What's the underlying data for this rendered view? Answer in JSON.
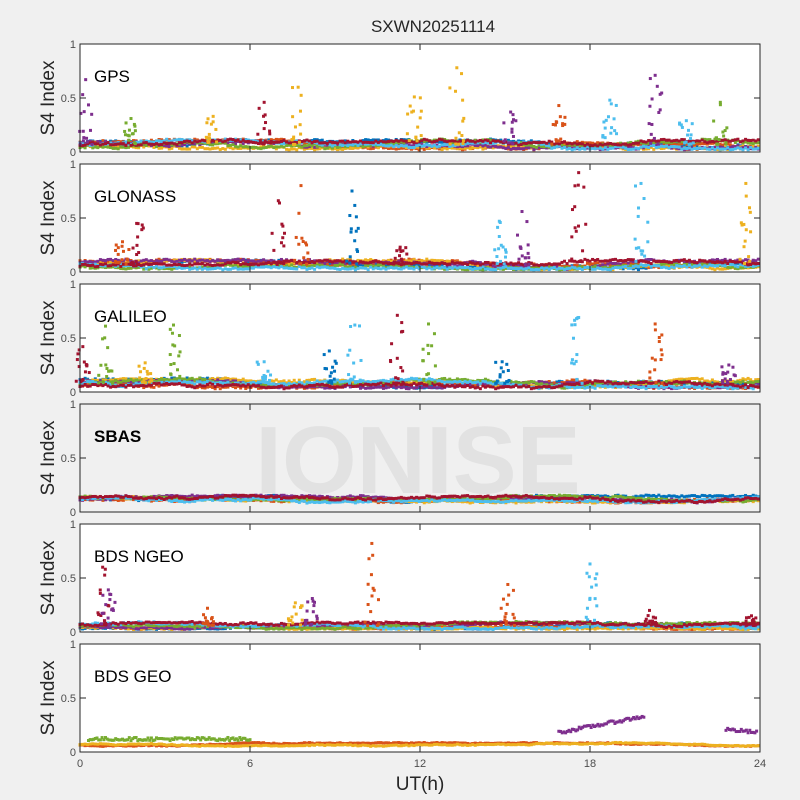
{
  "chart_data": {
    "type": "scatter",
    "title": "SXWN20251114",
    "xlabel": "UT(h)",
    "ylabel": "S4 Index",
    "xlim": [
      0,
      24
    ],
    "ylim": [
      0,
      1
    ],
    "xticks": [
      "0",
      "6",
      "12",
      "18",
      "24"
    ],
    "yticks": [
      "0",
      "0.5",
      "1"
    ],
    "watermark": "IONISE",
    "colors": [
      "#0072bd",
      "#d95319",
      "#edb120",
      "#7e2f8e",
      "#77ac30",
      "#4dbeee",
      "#a2142f"
    ],
    "panels": [
      {
        "label": "GPS",
        "baseline": 0.07,
        "noise": 0.04,
        "peaks": [
          {
            "x": 0.2,
            "y": 0.67,
            "color": 3
          },
          {
            "x": 1.8,
            "y": 0.31,
            "color": 4
          },
          {
            "x": 4.7,
            "y": 0.33,
            "color": 2
          },
          {
            "x": 6.5,
            "y": 0.46,
            "color": 6
          },
          {
            "x": 7.7,
            "y": 0.6,
            "color": 2
          },
          {
            "x": 11.8,
            "y": 0.51,
            "color": 2
          },
          {
            "x": 13.3,
            "y": 0.78,
            "color": 2
          },
          {
            "x": 15.2,
            "y": 0.37,
            "color": 3
          },
          {
            "x": 16.9,
            "y": 0.43,
            "color": 1
          },
          {
            "x": 18.7,
            "y": 0.48,
            "color": 5
          },
          {
            "x": 20.3,
            "y": 0.71,
            "color": 3
          },
          {
            "x": 21.4,
            "y": 0.29,
            "color": 5
          },
          {
            "x": 22.6,
            "y": 0.46,
            "color": 4
          }
        ]
      },
      {
        "label": "GLONASS",
        "baseline": 0.07,
        "noise": 0.04,
        "peaks": [
          {
            "x": 1.5,
            "y": 0.28,
            "color": 1
          },
          {
            "x": 2.0,
            "y": 0.45,
            "color": 6
          },
          {
            "x": 7.0,
            "y": 0.66,
            "color": 6
          },
          {
            "x": 7.8,
            "y": 0.8,
            "color": 1
          },
          {
            "x": 9.6,
            "y": 0.75,
            "color": 0
          },
          {
            "x": 11.3,
            "y": 0.23,
            "color": 6
          },
          {
            "x": 14.8,
            "y": 0.47,
            "color": 5
          },
          {
            "x": 15.6,
            "y": 0.56,
            "color": 3
          },
          {
            "x": 17.6,
            "y": 0.92,
            "color": 6
          },
          {
            "x": 19.8,
            "y": 0.82,
            "color": 5
          },
          {
            "x": 23.5,
            "y": 0.82,
            "color": 2
          }
        ]
      },
      {
        "label": "GALILEO",
        "baseline": 0.08,
        "noise": 0.04,
        "peaks": [
          {
            "x": 0.1,
            "y": 0.42,
            "color": 6
          },
          {
            "x": 0.9,
            "y": 0.61,
            "color": 4
          },
          {
            "x": 2.3,
            "y": 0.27,
            "color": 2
          },
          {
            "x": 3.3,
            "y": 0.62,
            "color": 4
          },
          {
            "x": 6.5,
            "y": 0.28,
            "color": 5
          },
          {
            "x": 8.8,
            "y": 0.38,
            "color": 0
          },
          {
            "x": 9.7,
            "y": 0.62,
            "color": 5
          },
          {
            "x": 11.2,
            "y": 0.71,
            "color": 6
          },
          {
            "x": 12.3,
            "y": 0.63,
            "color": 4
          },
          {
            "x": 14.9,
            "y": 0.28,
            "color": 0
          },
          {
            "x": 17.6,
            "y": 0.69,
            "color": 5
          },
          {
            "x": 20.3,
            "y": 0.63,
            "color": 1
          },
          {
            "x": 22.9,
            "y": 0.25,
            "color": 3
          }
        ]
      },
      {
        "label": "SBAS",
        "baseline": 0.12,
        "noise": 0.03,
        "peaks": []
      },
      {
        "label": "BDS NGEO",
        "baseline": 0.06,
        "noise": 0.03,
        "peaks": [
          {
            "x": 0.8,
            "y": 0.6,
            "color": 6
          },
          {
            "x": 1.0,
            "y": 0.39,
            "color": 3
          },
          {
            "x": 4.5,
            "y": 0.22,
            "color": 1
          },
          {
            "x": 7.6,
            "y": 0.27,
            "color": 2
          },
          {
            "x": 8.2,
            "y": 0.31,
            "color": 3
          },
          {
            "x": 10.3,
            "y": 0.82,
            "color": 1
          },
          {
            "x": 15.1,
            "y": 0.44,
            "color": 1
          },
          {
            "x": 18.0,
            "y": 0.63,
            "color": 5
          },
          {
            "x": 20.1,
            "y": 0.2,
            "color": 6
          },
          {
            "x": 23.7,
            "y": 0.15,
            "color": 6
          }
        ]
      },
      {
        "label": "BDS GEO",
        "baseline": 0.07,
        "noise": 0.015,
        "peaks": [],
        "tracks": [
          {
            "x0": 0.3,
            "x1": 6.0,
            "y0": 0.12,
            "y1": 0.12,
            "color": 4
          },
          {
            "x0": 16.9,
            "x1": 19.9,
            "y0": 0.18,
            "y1": 0.33,
            "color": 3
          },
          {
            "x0": 22.8,
            "x1": 23.9,
            "y0": 0.21,
            "y1": 0.18,
            "color": 3
          }
        ]
      }
    ]
  }
}
